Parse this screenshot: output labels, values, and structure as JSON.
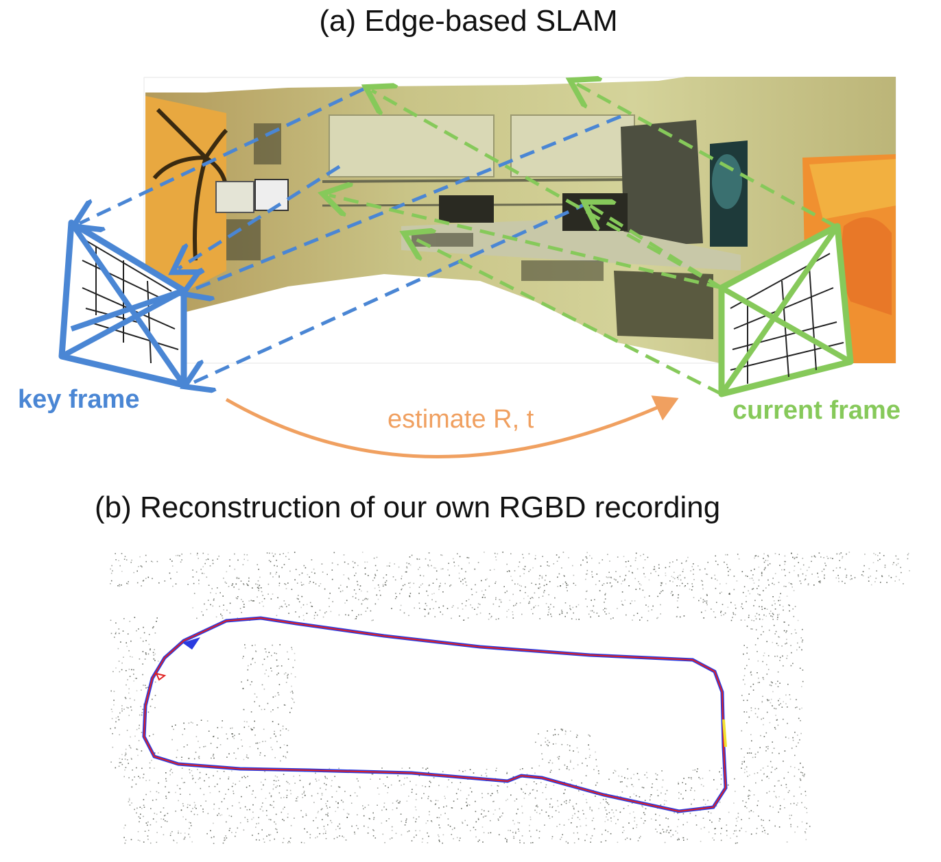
{
  "titles": {
    "a": "(a) Edge-based SLAM",
    "b": "(b) Reconstruction of our own RGBD recording"
  },
  "labels": {
    "key_frame": "key frame",
    "current_frame": "current frame",
    "estimate": "estimate R, t"
  },
  "colors": {
    "key_frame": "#4a86d4",
    "current_frame": "#86c95a",
    "estimate_arrow": "#f0a060",
    "trajectory_estimate": "#e02020",
    "trajectory_ground_truth": "#2a3be0"
  },
  "icons": {
    "key_frame_camera": "camera-frustum-icon",
    "current_frame_camera": "camera-frustum-icon"
  }
}
